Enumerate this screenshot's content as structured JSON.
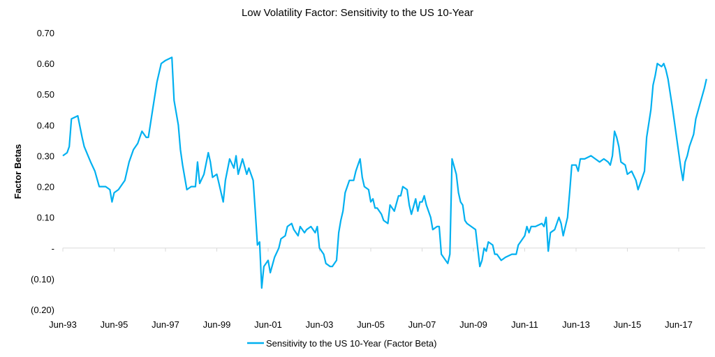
{
  "chart_data": {
    "type": "line",
    "title": "Low Volatility Factor: Sensitivity to the US 10-Year",
    "xlabel": "",
    "ylabel": "Factor Betas",
    "ylim": [
      -0.2,
      0.7
    ],
    "y_ticks": [
      0.7,
      0.6,
      0.5,
      0.4,
      0.3,
      0.2,
      0.1,
      0,
      -0.1,
      -0.2
    ],
    "y_tick_labels": [
      "0.70",
      "0.60",
      "0.50",
      "0.40",
      "0.30",
      "0.20",
      "0.10",
      "-",
      "(0.10)",
      "(0.20)"
    ],
    "x_ticks": [
      "1993-06",
      "1995-06",
      "1997-06",
      "1999-06",
      "2001-06",
      "2003-06",
      "2005-06",
      "2007-06",
      "2009-06",
      "2011-06",
      "2013-06",
      "2015-06",
      "2017-06"
    ],
    "x_tick_labels": [
      "Jun-93",
      "Jun-95",
      "Jun-97",
      "Jun-99",
      "Jun-01",
      "Jun-03",
      "Jun-05",
      "Jun-07",
      "Jun-09",
      "Jun-11",
      "Jun-13",
      "Jun-15",
      "Jun-17"
    ],
    "grid": false,
    "legend_position": "bottom",
    "series": [
      {
        "name": "Sensitivity to the US 10-Year (Factor Beta)",
        "color": "#00B0F0",
        "x": [
          "1993-06",
          "1993-08",
          "1993-09",
          "1993-10",
          "1994-01",
          "1994-03",
          "1994-04",
          "1994-07",
          "1994-09",
          "1994-11",
          "1995-02",
          "1995-04",
          "1995-05",
          "1995-06",
          "1995-08",
          "1995-11",
          "1996-01",
          "1996-03",
          "1996-05",
          "1996-07",
          "1996-09",
          "1996-10",
          "1996-12",
          "1997-02",
          "1997-04",
          "1997-06",
          "1997-09",
          "1997-10",
          "1997-12",
          "1998-01",
          "1998-02",
          "1998-04",
          "1998-06",
          "1998-08",
          "1998-09",
          "1998-10",
          "1998-12",
          "1999-02",
          "1999-03",
          "1999-04",
          "1999-06",
          "1999-07",
          "1999-09",
          "1999-10",
          "1999-12",
          "2000-02",
          "2000-03",
          "2000-04",
          "2000-06",
          "2000-08",
          "2000-09",
          "2000-11",
          "2000-12",
          "2001-01",
          "2001-02",
          "2001-03",
          "2001-04",
          "2001-06",
          "2001-07",
          "2001-09",
          "2001-11",
          "2001-12",
          "2002-02",
          "2002-03",
          "2002-05",
          "2002-06",
          "2002-08",
          "2002-09",
          "2002-11",
          "2002-12",
          "2003-02",
          "2003-04",
          "2003-05",
          "2003-06",
          "2003-08",
          "2003-09",
          "2003-11",
          "2003-12",
          "2004-02",
          "2004-03",
          "2004-04",
          "2004-05",
          "2004-06",
          "2004-08",
          "2004-10",
          "2004-11",
          "2004-12",
          "2005-01",
          "2005-02",
          "2005-03",
          "2005-05",
          "2005-06",
          "2005-07",
          "2005-08",
          "2005-09",
          "2005-11",
          "2005-12",
          "2006-02",
          "2006-03",
          "2006-05",
          "2006-07",
          "2006-08",
          "2006-09",
          "2006-11",
          "2006-12",
          "2007-01",
          "2007-03",
          "2007-04",
          "2007-05",
          "2007-06",
          "2007-07",
          "2007-08",
          "2007-10",
          "2007-11",
          "2008-01",
          "2008-02",
          "2008-03",
          "2008-05",
          "2008-06",
          "2008-07",
          "2008-08",
          "2008-10",
          "2008-11",
          "2008-12",
          "2009-01",
          "2009-02",
          "2009-03",
          "2009-05",
          "2009-07",
          "2009-08",
          "2009-09",
          "2009-10",
          "2009-11",
          "2009-12",
          "2010-01",
          "2010-03",
          "2010-04",
          "2010-05",
          "2010-07",
          "2010-09",
          "2010-12",
          "2011-02",
          "2011-03",
          "2011-04",
          "2011-06",
          "2011-07",
          "2011-08",
          "2011-09",
          "2011-11",
          "2012-02",
          "2012-03",
          "2012-04",
          "2012-05",
          "2012-06",
          "2012-08",
          "2012-10",
          "2012-11",
          "2012-12",
          "2013-02",
          "2013-03",
          "2013-04",
          "2013-06",
          "2013-07",
          "2013-08",
          "2013-10",
          "2014-01",
          "2014-03",
          "2014-05",
          "2014-07",
          "2014-09",
          "2014-10",
          "2014-11",
          "2014-12",
          "2015-01",
          "2015-02",
          "2015-03",
          "2015-05",
          "2015-06",
          "2015-08",
          "2015-10",
          "2015-11",
          "2015-12",
          "2016-02",
          "2016-03",
          "2016-05",
          "2016-06",
          "2016-07",
          "2016-08",
          "2016-10",
          "2016-11",
          "2016-12",
          "2017-01",
          "2017-03",
          "2017-04",
          "2017-06",
          "2017-07",
          "2017-08",
          "2017-09",
          "2017-10",
          "2017-11",
          "2018-01",
          "2018-02",
          "2018-04",
          "2018-06",
          "2018-07"
        ],
        "values": [
          0.3,
          0.31,
          0.33,
          0.42,
          0.43,
          0.36,
          0.33,
          0.28,
          0.25,
          0.2,
          0.2,
          0.19,
          0.15,
          0.18,
          0.19,
          0.22,
          0.28,
          0.32,
          0.34,
          0.38,
          0.36,
          0.36,
          0.45,
          0.54,
          0.6,
          0.61,
          0.62,
          0.48,
          0.4,
          0.32,
          0.27,
          0.19,
          0.2,
          0.2,
          0.28,
          0.21,
          0.24,
          0.31,
          0.28,
          0.23,
          0.24,
          0.21,
          0.15,
          0.22,
          0.29,
          0.26,
          0.3,
          0.24,
          0.29,
          0.24,
          0.26,
          0.22,
          0.12,
          0.01,
          0.02,
          -0.13,
          -0.06,
          -0.04,
          -0.08,
          -0.03,
          0.0,
          0.03,
          0.04,
          0.07,
          0.08,
          0.06,
          0.04,
          0.07,
          0.05,
          0.06,
          0.07,
          0.05,
          0.07,
          0.0,
          -0.02,
          -0.05,
          -0.06,
          -0.06,
          -0.04,
          0.05,
          0.09,
          0.12,
          0.18,
          0.22,
          0.22,
          0.25,
          0.27,
          0.29,
          0.23,
          0.2,
          0.19,
          0.15,
          0.16,
          0.13,
          0.13,
          0.11,
          0.09,
          0.08,
          0.14,
          0.12,
          0.17,
          0.17,
          0.2,
          0.19,
          0.14,
          0.11,
          0.16,
          0.12,
          0.15,
          0.15,
          0.17,
          0.14,
          0.1,
          0.06,
          0.07,
          0.07,
          -0.02,
          -0.04,
          -0.05,
          -0.02,
          0.29,
          0.24,
          0.18,
          0.15,
          0.14,
          0.09,
          0.08,
          0.07,
          0.06,
          0.0,
          -0.06,
          -0.04,
          0.0,
          -0.01,
          0.02,
          0.01,
          -0.02,
          -0.02,
          -0.04,
          -0.03,
          -0.02,
          -0.02,
          0.01,
          0.02,
          0.04,
          0.07,
          0.05,
          0.07,
          0.07,
          0.08,
          0.07,
          0.1,
          -0.01,
          0.05,
          0.06,
          0.1,
          0.08,
          0.04,
          0.1,
          0.18,
          0.27,
          0.27,
          0.25,
          0.29,
          0.29,
          0.3,
          0.29,
          0.28,
          0.29,
          0.28,
          0.27,
          0.3,
          0.38,
          0.36,
          0.33,
          0.28,
          0.27,
          0.24,
          0.25,
          0.22,
          0.19,
          0.21,
          0.25,
          0.36,
          0.45,
          0.53,
          0.56,
          0.6,
          0.59,
          0.6,
          0.58,
          0.55,
          0.46,
          0.41,
          0.31,
          0.26,
          0.22,
          0.28,
          0.3,
          0.33,
          0.37,
          0.42,
          0.47,
          0.52,
          0.55
        ]
      }
    ]
  }
}
